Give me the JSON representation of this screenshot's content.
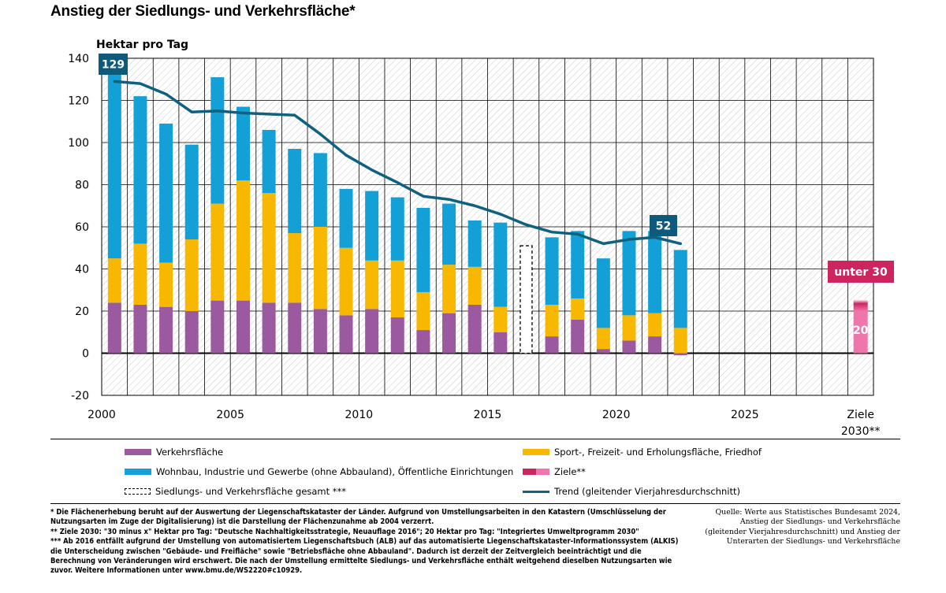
{
  "title": "Anstieg der Siedlungs- und Verkehrsfläche*",
  "chart_data": {
    "type": "bar",
    "stacked": true,
    "ylabel": "Hektar pro Tag",
    "ylim": [
      -20,
      140
    ],
    "yticks": [
      -20,
      0,
      20,
      40,
      60,
      80,
      100,
      120,
      140
    ],
    "xticks": [
      "2000",
      "2005",
      "2010",
      "2015",
      "2020",
      "2025"
    ],
    "goal_tick": [
      "Ziele",
      "2030**"
    ],
    "grid": true,
    "categories": [
      "2000",
      "2001",
      "2002",
      "2003",
      "2004",
      "2005",
      "2006",
      "2007",
      "2008",
      "2009",
      "2010",
      "2011",
      "2012",
      "2013",
      "2014",
      "2015",
      "2016",
      "2017",
      "2018",
      "2019",
      "2020",
      "2021",
      "2022"
    ],
    "series": [
      {
        "name": "Verkehrsfläche",
        "color": "#9b59a0",
        "values": [
          24,
          23,
          22,
          20,
          25,
          25,
          24,
          24,
          21,
          18,
          21,
          17,
          11,
          19,
          23,
          10,
          null,
          8,
          16,
          2,
          6,
          8,
          -1
        ]
      },
      {
        "name": "Sport-, Freizeit- und Erholungsfläche, Friedhof",
        "color": "#f9b800",
        "values": [
          21,
          29,
          21,
          34,
          46,
          57,
          52,
          33,
          39,
          32,
          23,
          27,
          18,
          23,
          18,
          12,
          null,
          15,
          10,
          10,
          12,
          11,
          12
        ]
      },
      {
        "name": "Wohnbau, Industrie und Gewerbe (ohne Abbauland), Öffentliche Einrichtungen",
        "color": "#12a0d7",
        "values": [
          88,
          70,
          66,
          45,
          60,
          35,
          30,
          40,
          35,
          28,
          33,
          30,
          40,
          29,
          22,
          40,
          null,
          32,
          32,
          33,
          40,
          39,
          37
        ]
      },
      {
        "name": "Siedlungs- und Verkehrsfläche gesamt ***",
        "style": "dashed",
        "values": [
          null,
          null,
          null,
          null,
          null,
          null,
          null,
          null,
          null,
          null,
          null,
          null,
          null,
          null,
          null,
          null,
          51,
          null,
          null,
          null,
          null,
          null,
          null
        ]
      },
      {
        "name": "Trend (gleitender Vierjahresdurchschnitt)",
        "type": "line",
        "color": "#0e6180",
        "values": [
          129,
          128,
          123,
          114.5,
          115,
          114,
          113.5,
          113,
          104,
          94,
          87,
          81,
          74.5,
          73,
          70,
          66,
          61,
          57.5,
          56.5,
          52,
          54,
          55,
          52
        ]
      },
      {
        "name": "Ziele**",
        "color_range": [
          "#cc2560",
          "#f075aa"
        ],
        "target_range": [
          20,
          30
        ]
      }
    ],
    "annotations": [
      {
        "label": "129",
        "year": "2000",
        "value": 129
      },
      {
        "label": "52",
        "year": "2022",
        "value": 52
      },
      {
        "label": "unter 30",
        "category": "Ziele 2030**",
        "value": 30
      },
      {
        "label": "20",
        "category": "Ziele 2030**",
        "value": 20
      }
    ],
    "colors": {
      "trend_box": "#0e5a7a",
      "goal_box": "#cc2560",
      "goal_bar": "#f075aa"
    }
  },
  "legend": [
    {
      "label": "Verkehrsfläche"
    },
    {
      "label": "Sport-, Freizeit- und Erholungsfläche, Friedhof"
    },
    {
      "label": "Wohnbau, Industrie und Gewerbe (ohne Abbauland), Öffentliche Einrichtungen"
    },
    {
      "label": "Ziele**"
    },
    {
      "label": "Siedlungs- und Verkehrsfläche gesamt ***"
    },
    {
      "label": "Trend (gleitender Vierjahresdurchschnitt)"
    }
  ],
  "footnotes": [
    "* Die Flächenerhebung beruht auf der Auswertung der Liegenschaftskataster der Länder. Aufgrund von Umstellungsarbeiten in den Katastern (Umschlüsselung der",
    "Nutzungsarten im Zuge der Digitalisierung) ist die Darstellung der Flächenzunahme ab 2004 verzerrt.",
    "** Ziele 2030: \"30 minus x\" Hektar pro Tag: \"Deutsche Nachhaltigkeitsstrategie, Neuauflage 2016\"; 20 Hektar pro Tag: \"Integriertes Umweltprogramm 2030\"",
    "*** Ab 2016 entfällt aufgrund der Umstellung von automatisiertem Liegenschaftsbuch (ALB) auf das automatisierte Liegenschaftskataster-Informationssystem (ALKIS)",
    "die Unterscheidung zwischen \"Gebäude- und Freifläche\" sowie \"Betriebsfläche ohne Abbauland\". Dadurch ist derzeit der Zeitvergleich beeinträchtigt und die",
    "Berechnung von Veränderungen wird erschwert. Die nach der Umstellung ermittelte Siedlungs- und Verkehrsfläche enthält weitgehend dieselben Nutzungsarten wie",
    "zuvor. Weitere Informationen unter www.bmu.de/WS2220#c10929."
  ],
  "source": [
    "Quelle: Werte aus Statistisches Bundesamt 2024,",
    "Anstieg der Siedlungs- und Verkehrsfläche",
    "(gleitender Vierjahresdurchschnitt) und Anstieg der",
    "Unterarten der Siedlungs- und Verkehrsfläche"
  ]
}
